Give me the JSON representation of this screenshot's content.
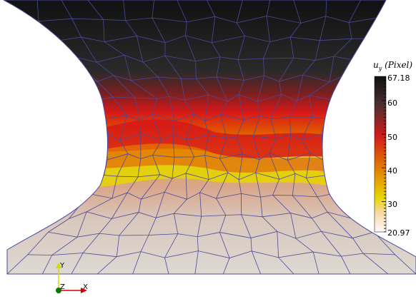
{
  "colorbar": {
    "variable": "u",
    "subscript": "y",
    "unit": "(Pixel)",
    "min_label": "20.97",
    "max_label": "67.18",
    "ticks": [
      {
        "label": "60",
        "value": 60
      },
      {
        "label": "50",
        "value": 50
      },
      {
        "label": "40",
        "value": 40
      },
      {
        "label": "30",
        "value": 30
      }
    ],
    "range": [
      20.97,
      67.18
    ],
    "colormap": [
      "#fffafa",
      "#f4d58a",
      "#e8d800",
      "#e06000",
      "#d01818",
      "#3a3a3a",
      "#111111"
    ]
  },
  "axes_triad": {
    "y_label": "Y",
    "z_label": "Z",
    "x_label": "X",
    "colors": {
      "y": "#d8d800",
      "z": "#007a00",
      "x": "#d00000"
    }
  },
  "mesh": {
    "edge_color": "#4a4a9a",
    "colors": {
      "top": "#1a1a1a",
      "band_red": "#d01818",
      "band_yellow": "#d8d000",
      "bottom": "#ddd6cf"
    }
  }
}
